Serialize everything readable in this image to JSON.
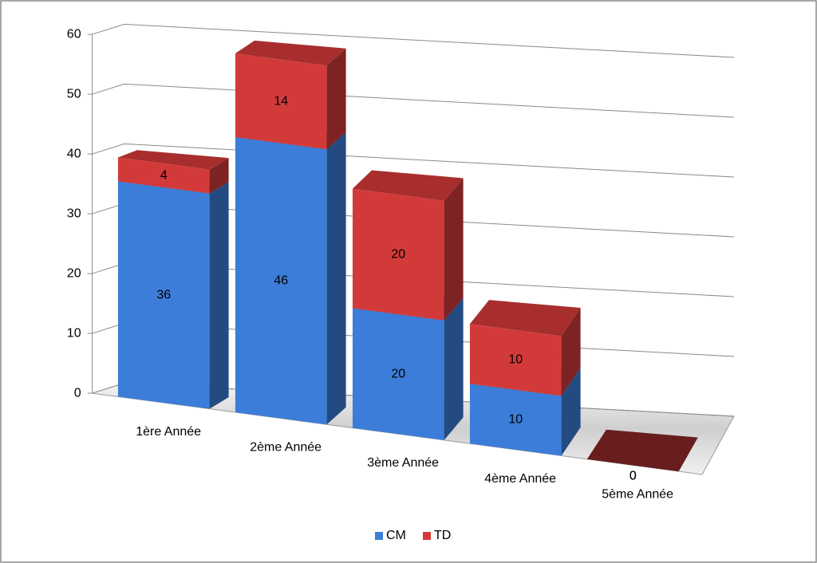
{
  "chart_data": {
    "type": "bar3d_stacked",
    "categories": [
      "1ère Année",
      "2ème Année",
      "3ème Année",
      "4ème Année",
      "5ème Année"
    ],
    "series": [
      {
        "name": "CM",
        "color": "#3b7dd8",
        "values": [
          36,
          46,
          20,
          10,
          0
        ]
      },
      {
        "name": "TD",
        "color": "#d23a3a",
        "values": [
          4,
          14,
          20,
          10,
          0
        ]
      }
    ],
    "ylim": [
      0,
      60
    ],
    "yticks": [
      0,
      10,
      20,
      30,
      40,
      50,
      60
    ],
    "grid": true,
    "legend": "bottom"
  }
}
